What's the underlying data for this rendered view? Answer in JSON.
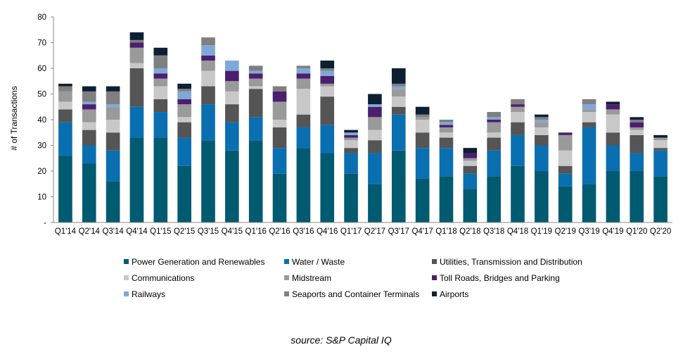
{
  "chart_data": {
    "type": "bar",
    "stacked": true,
    "ylabel": "# of Transactions",
    "ylim": [
      0,
      80
    ],
    "yticks": [
      "-",
      "10",
      "20",
      "30",
      "40",
      "50",
      "60",
      "70",
      "80"
    ],
    "grid": false,
    "legend_position": "bottom",
    "categories": [
      "Q1'14",
      "Q2'14",
      "Q3'14",
      "Q4'14",
      "Q1'15",
      "Q2'15",
      "Q3'15",
      "Q4'15",
      "Q1'16",
      "Q2'16",
      "Q3'16",
      "Q4'16",
      "Q1'17",
      "Q2'17",
      "Q3'17",
      "Q4'17",
      "Q1'18",
      "Q2'18",
      "Q3'18",
      "Q4'18",
      "Q1'19",
      "Q2'19",
      "Q3'19",
      "Q4'19",
      "Q1'20",
      "Q2'20"
    ],
    "series": [
      {
        "name": "Power Generation and Renewables",
        "color": "#005a70",
        "values": [
          26,
          23,
          16,
          33,
          33,
          22,
          32,
          28,
          32,
          19,
          29,
          27,
          19,
          15,
          28,
          17,
          18,
          13,
          18,
          22,
          20,
          14,
          15,
          20,
          20,
          18
        ]
      },
      {
        "name": "Water / Waste",
        "color": "#0a6fb0",
        "values": [
          13,
          7,
          12,
          12,
          10,
          11,
          14,
          11,
          9,
          10,
          8,
          11,
          8,
          12,
          14,
          12,
          11,
          6,
          10,
          12,
          10,
          5,
          22,
          10,
          7,
          10
        ]
      },
      {
        "name": "Utilities, Transmission and Distribution",
        "color": "#555555",
        "values": [
          5,
          6,
          7,
          15,
          5,
          6,
          7,
          7,
          11,
          8,
          5,
          11,
          2,
          5,
          3,
          6,
          4,
          3,
          5,
          5,
          4,
          3,
          2,
          5,
          7,
          1
        ]
      },
      {
        "name": "Communications",
        "color": "#c8c8c8",
        "values": [
          3,
          3,
          5,
          2,
          5,
          2,
          6,
          5,
          1,
          3,
          10,
          4,
          3,
          4,
          4,
          5,
          2,
          2,
          2,
          4,
          3,
          6,
          4,
          7,
          2,
          3
        ]
      },
      {
        "name": "Midstream",
        "color": "#9a9a9a",
        "values": [
          4,
          5,
          5,
          6,
          3,
          5,
          4,
          4,
          3,
          7,
          4,
          1,
          1,
          5,
          3,
          1,
          2,
          1,
          4,
          2,
          2,
          6,
          1,
          2,
          1,
          1
        ]
      },
      {
        "name": "Toll Roads, Bridges and Parking",
        "color": "#4b1f6e",
        "values": [
          0,
          2,
          0,
          2,
          2,
          2,
          2,
          4,
          2,
          4,
          2,
          3,
          1,
          4,
          0,
          0,
          1,
          2,
          1,
          1,
          0,
          1,
          0,
          2,
          2,
          0
        ]
      },
      {
        "name": "Railways",
        "color": "#7fa8d8",
        "values": [
          0,
          1,
          1,
          0,
          2,
          3,
          4,
          4,
          1,
          0,
          2,
          2,
          1,
          1,
          1,
          0,
          1,
          0,
          1,
          0,
          1,
          0,
          2,
          0,
          0,
          0
        ]
      },
      {
        "name": "Seaports and Container Terminals",
        "color": "#7f7f7f",
        "values": [
          2,
          4,
          5,
          1,
          5,
          1,
          3,
          0,
          2,
          2,
          1,
          1,
          0,
          0,
          1,
          1,
          1,
          0,
          2,
          2,
          1,
          0,
          2,
          0,
          1,
          0
        ]
      },
      {
        "name": "Airports",
        "color": "#0d1f33",
        "values": [
          1,
          2,
          2,
          3,
          3,
          2,
          0,
          0,
          0,
          0,
          0,
          3,
          1,
          4,
          6,
          3,
          0,
          2,
          0,
          0,
          1,
          0,
          0,
          1,
          1,
          1
        ]
      }
    ]
  },
  "source": "source:  S&P Capital IQ"
}
